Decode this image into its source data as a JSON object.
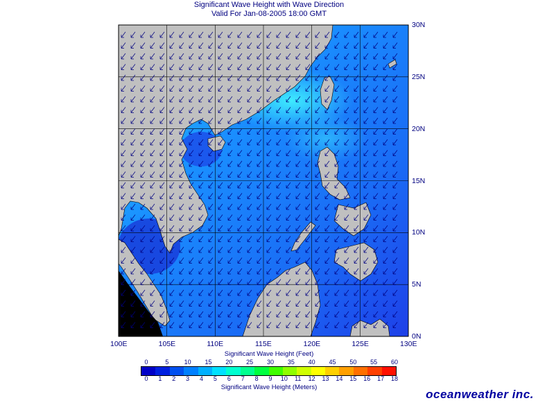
{
  "title_line1": "Significant Wave Height with Wave Direction",
  "title_line2": "Valid For Jan-08-2005 18:00 GMT",
  "lon_labels": [
    "100E",
    "105E",
    "110E",
    "115E",
    "120E",
    "125E",
    "130E"
  ],
  "lat_labels": [
    "30N",
    "25N",
    "20N",
    "15N",
    "10N",
    "5N",
    "0N"
  ],
  "feet_scale_label": "Significant Wave Height (Feet)",
  "feet_ticks": [
    "0",
    "5",
    "10",
    "15",
    "20",
    "25",
    "30",
    "35",
    "40",
    "45",
    "50",
    "55",
    "60"
  ],
  "meters_scale_label": "Significant Wave Height (Meters)",
  "meters_ticks": [
    "0",
    "1",
    "2",
    "3",
    "4",
    "5",
    "6",
    "7",
    "8",
    "9",
    "10",
    "11",
    "12",
    "13",
    "14",
    "15",
    "16",
    "17",
    "18"
  ],
  "brand": "oceanweather inc.",
  "colors": {
    "land": "#c0c0c0",
    "sea_low": "#1e40e8",
    "sea_mid": "#1a78ff",
    "sea_high": "#2ad8ff",
    "arrow": "#000080",
    "grid": "#000000"
  },
  "color_scale": [
    "#0000c8",
    "#0020e0",
    "#0050f0",
    "#0080ff",
    "#00b0ff",
    "#00e0ff",
    "#00ffd0",
    "#00ff90",
    "#00ff40",
    "#40ff00",
    "#90ff00",
    "#d0ff00",
    "#ffff00",
    "#ffd000",
    "#ffa000",
    "#ff7000",
    "#ff4000",
    "#ff1000"
  ],
  "arrow_direction_deg": 225
}
